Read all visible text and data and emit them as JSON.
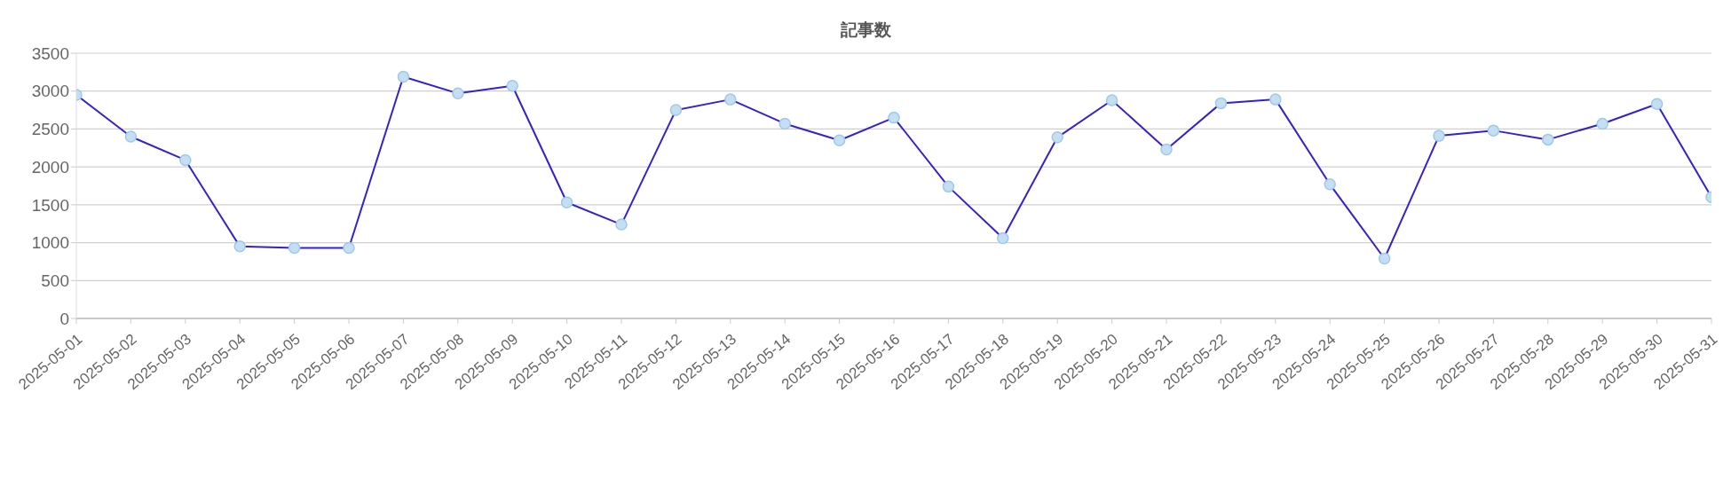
{
  "chart_data": {
    "type": "line",
    "title": "記事数",
    "categories": [
      "2025-05-01",
      "2025-05-02",
      "2025-05-03",
      "2025-05-04",
      "2025-05-05",
      "2025-05-06",
      "2025-05-07",
      "2025-05-08",
      "2025-05-09",
      "2025-05-10",
      "2025-05-11",
      "2025-05-12",
      "2025-05-13",
      "2025-05-14",
      "2025-05-15",
      "2025-05-16",
      "2025-05-17",
      "2025-05-18",
      "2025-05-19",
      "2025-05-20",
      "2025-05-21",
      "2025-05-22",
      "2025-05-23",
      "2025-05-24",
      "2025-05-25",
      "2025-05-26",
      "2025-05-27",
      "2025-05-28",
      "2025-05-29",
      "2025-05-30",
      "2025-05-31"
    ],
    "series": [
      {
        "color": "#3322cc",
        "values": [
          2950,
          2400,
          2090,
          950,
          930,
          930,
          3190,
          2970,
          3070,
          1530,
          1240,
          2750,
          2890,
          2570,
          2350,
          2650,
          1740,
          1060,
          2390,
          2880,
          2230,
          2840,
          2890,
          1770,
          790,
          2410,
          2480,
          2360,
          2570,
          2830,
          1600
        ]
      }
    ],
    "ylim": [
      0,
      3500
    ],
    "yticks": [
      0,
      500,
      1000,
      1500,
      2000,
      2500,
      3000,
      3500
    ],
    "grid": "y",
    "legend": false,
    "marker": "circle",
    "line_style": "solid"
  }
}
